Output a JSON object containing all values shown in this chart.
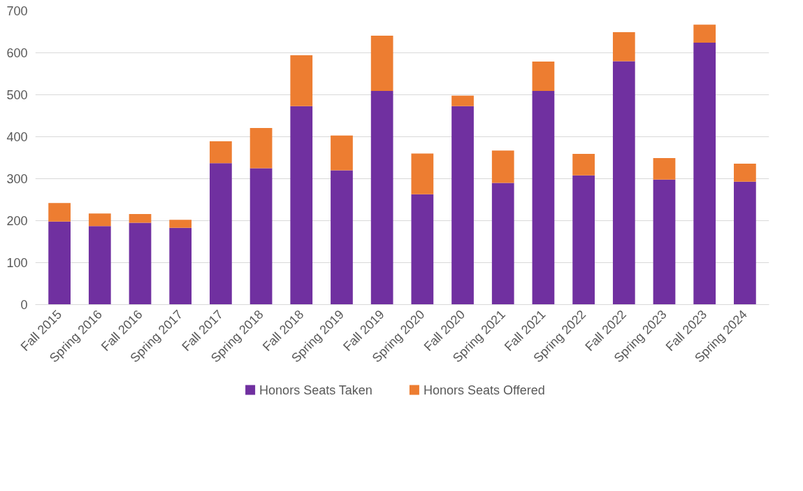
{
  "chart_data": {
    "type": "bar",
    "stacked": true,
    "categories": [
      "Fall 2015",
      "Spring 2016",
      "Fall 2016",
      "Spring 2017",
      "Fall 2017",
      "Spring 2018",
      "Fall 2018",
      "Spring 2019",
      "Fall 2019",
      "Spring 2020",
      "Fall 2020",
      "Spring 2021",
      "Fall 2021",
      "Spring 2022",
      "Fall 2022",
      "Spring 2023",
      "Fall 2023",
      "Spring 2024"
    ],
    "series": [
      {
        "name": "Honors Seats Taken",
        "color": "#7030a0",
        "values": [
          198,
          187,
          195,
          183,
          337,
          325,
          473,
          320,
          509,
          263,
          473,
          290,
          509,
          308,
          580,
          298,
          624,
          293
        ]
      },
      {
        "name": "Honors Seats Offered",
        "color": "#ed7d31",
        "values": [
          44,
          30,
          21,
          19,
          52,
          96,
          121,
          83,
          132,
          97,
          25,
          77,
          70,
          51,
          69,
          51,
          43,
          43
        ]
      }
    ],
    "ylim": [
      0,
      700
    ],
    "yticks": [
      0,
      100,
      200,
      300,
      400,
      500,
      600,
      700
    ],
    "grid": "y",
    "legend": "bottom"
  }
}
